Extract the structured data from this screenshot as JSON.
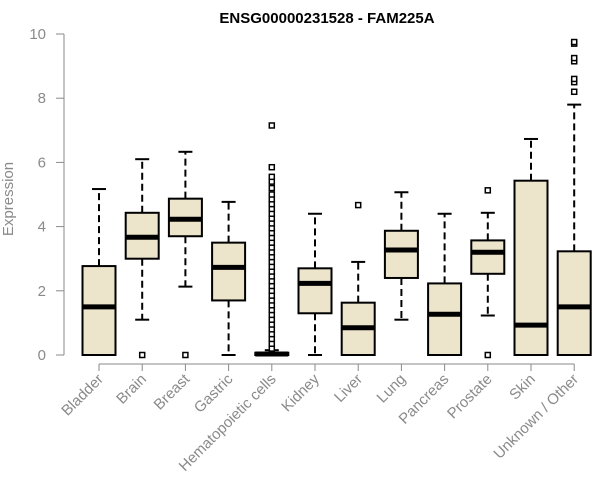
{
  "chart_data": {
    "type": "boxplot",
    "title": "ENSG00000231528 - FAM225A",
    "xlabel": "",
    "ylabel": "Expression",
    "ylim": [
      0,
      10
    ],
    "yticks": [
      0,
      2,
      4,
      6,
      8,
      10
    ],
    "colors": {
      "box_fill": "#ede5cb",
      "line": "#000000",
      "axis": "#8a8a8a"
    },
    "categories": [
      "Bladder",
      "Brain",
      "Breast",
      "Gastric",
      "Hematopoietic cells",
      "Kidney",
      "Liver",
      "Lung",
      "Pancreas",
      "Prostate",
      "Skin",
      "Unknown / Other"
    ],
    "boxes": [
      {
        "name": "Bladder",
        "q1": 0.0,
        "median": 1.5,
        "q3": 2.77,
        "whisker_low": 0.0,
        "whisker_high": 5.17,
        "outliers": []
      },
      {
        "name": "Brain",
        "q1": 3.0,
        "median": 3.67,
        "q3": 4.43,
        "whisker_low": 1.1,
        "whisker_high": 6.1,
        "outliers": [
          0.0
        ]
      },
      {
        "name": "Breast",
        "q1": 3.7,
        "median": 4.23,
        "q3": 4.87,
        "whisker_low": 2.13,
        "whisker_high": 6.33,
        "outliers": [
          0.0
        ]
      },
      {
        "name": "Gastric",
        "q1": 1.7,
        "median": 2.73,
        "q3": 3.5,
        "whisker_low": 0.0,
        "whisker_high": 4.77,
        "outliers": []
      },
      {
        "name": "Hematopoietic cells",
        "q1": 0.0,
        "median": 0.03,
        "q3": 0.07,
        "whisker_low": 0.0,
        "whisker_high": 0.15,
        "outliers": [
          0.2,
          0.35,
          0.5,
          0.65,
          0.8,
          0.95,
          1.1,
          1.25,
          1.4,
          1.55,
          1.7,
          1.85,
          2.0,
          2.15,
          2.3,
          2.45,
          2.6,
          2.75,
          2.9,
          3.05,
          3.2,
          3.35,
          3.5,
          3.65,
          3.8,
          3.95,
          4.1,
          4.25,
          4.4,
          4.55,
          4.7,
          4.85,
          5.0,
          5.2,
          5.4,
          5.55,
          5.85,
          7.15
        ]
      },
      {
        "name": "Kidney",
        "q1": 1.3,
        "median": 2.23,
        "q3": 2.7,
        "whisker_low": 0.0,
        "whisker_high": 4.4,
        "outliers": []
      },
      {
        "name": "Liver",
        "q1": 0.0,
        "median": 0.85,
        "q3": 1.63,
        "whisker_low": 0.0,
        "whisker_high": 2.9,
        "outliers": [
          4.67
        ]
      },
      {
        "name": "Lung",
        "q1": 2.4,
        "median": 3.27,
        "q3": 3.87,
        "whisker_low": 1.1,
        "whisker_high": 5.07,
        "outliers": []
      },
      {
        "name": "Pancreas",
        "q1": 0.0,
        "median": 1.27,
        "q3": 2.23,
        "whisker_low": 0.0,
        "whisker_high": 4.4,
        "outliers": []
      },
      {
        "name": "Prostate",
        "q1": 2.53,
        "median": 3.2,
        "q3": 3.57,
        "whisker_low": 1.23,
        "whisker_high": 4.43,
        "outliers": [
          0.0,
          5.13
        ]
      },
      {
        "name": "Skin",
        "q1": 0.0,
        "median": 0.93,
        "q3": 5.43,
        "whisker_low": 0.0,
        "whisker_high": 6.73,
        "outliers": []
      },
      {
        "name": "Unknown / Other",
        "q1": 0.0,
        "median": 1.5,
        "q3": 3.23,
        "whisker_low": 0.0,
        "whisker_high": 7.8,
        "outliers": [
          8.2,
          8.5,
          8.6,
          9.15,
          9.25,
          9.7,
          9.75
        ]
      }
    ]
  }
}
